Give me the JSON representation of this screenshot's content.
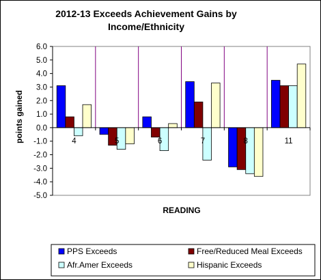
{
  "chart_data": {
    "type": "bar",
    "title_lines": [
      "2012-13 Exceeds Achievement Gains by",
      "Income/Ethnicity"
    ],
    "xlabel": "READING",
    "ylabel": "points gained",
    "categories": [
      "4",
      "5",
      "6",
      "7",
      "8",
      "11"
    ],
    "ylim": [
      -5.0,
      6.0
    ],
    "ytick_step": 1.0,
    "ytick_labels": [
      "6.0",
      "5.0",
      "4.0",
      "3.0",
      "2.0",
      "1.0",
      "0.0",
      "-1.0",
      "-2.0",
      "-3.0",
      "-4.0",
      "-5.0"
    ],
    "grid": false,
    "legend_position": "bottom",
    "series": [
      {
        "name": "PPS Exceeds",
        "color": "#0000FF",
        "values": [
          3.1,
          -0.5,
          0.8,
          3.4,
          -2.9,
          3.5
        ]
      },
      {
        "name": "Free/Reduced Meal Exceeds",
        "color": "#800000",
        "values": [
          0.8,
          -1.3,
          -0.7,
          1.9,
          -3.1,
          3.1
        ]
      },
      {
        "name": "Afr.Amer Exceeds",
        "color": "#CCFFFF",
        "values": [
          -0.6,
          -1.6,
          -1.7,
          -2.4,
          -3.4,
          3.1
        ]
      },
      {
        "name": "Hispanic Exceeds",
        "color": "#FFFFCC",
        "values": [
          1.7,
          -1.2,
          0.3,
          3.3,
          -3.6,
          4.7
        ]
      }
    ],
    "plot_background": "#FFFFFF",
    "category_separator_color": "#800080"
  }
}
